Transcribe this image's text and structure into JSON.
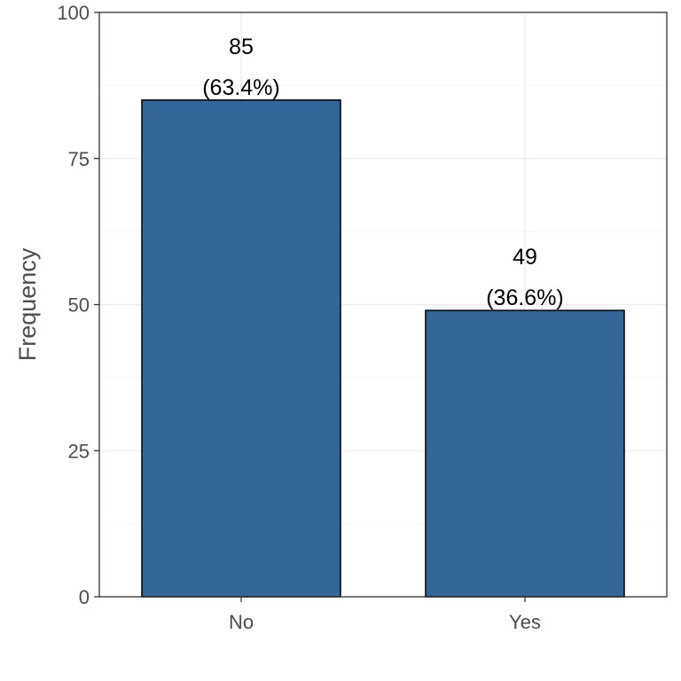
{
  "chart_data": {
    "type": "bar",
    "title": "",
    "xlabel": "",
    "ylabel": "Frequency",
    "categories": [
      "No",
      "Yes"
    ],
    "values": [
      85,
      49
    ],
    "value_labels": [
      "85",
      "49"
    ],
    "percent_labels": [
      "(63.4%)",
      "(36.6%)"
    ],
    "ylim": [
      0,
      100
    ],
    "yticks": [
      0,
      25,
      50,
      75,
      100
    ],
    "ytick_labels": [
      "0",
      "25",
      "50",
      "75",
      "100"
    ],
    "grid": true,
    "legend": "none",
    "colors": {
      "bar_fill": "#336699",
      "bar_stroke": "#000000",
      "grid_major": "#ebebeb",
      "grid_minor": "#f5f5f5",
      "axis_text": "#4d4d4d",
      "panel_border": "#333333"
    }
  }
}
